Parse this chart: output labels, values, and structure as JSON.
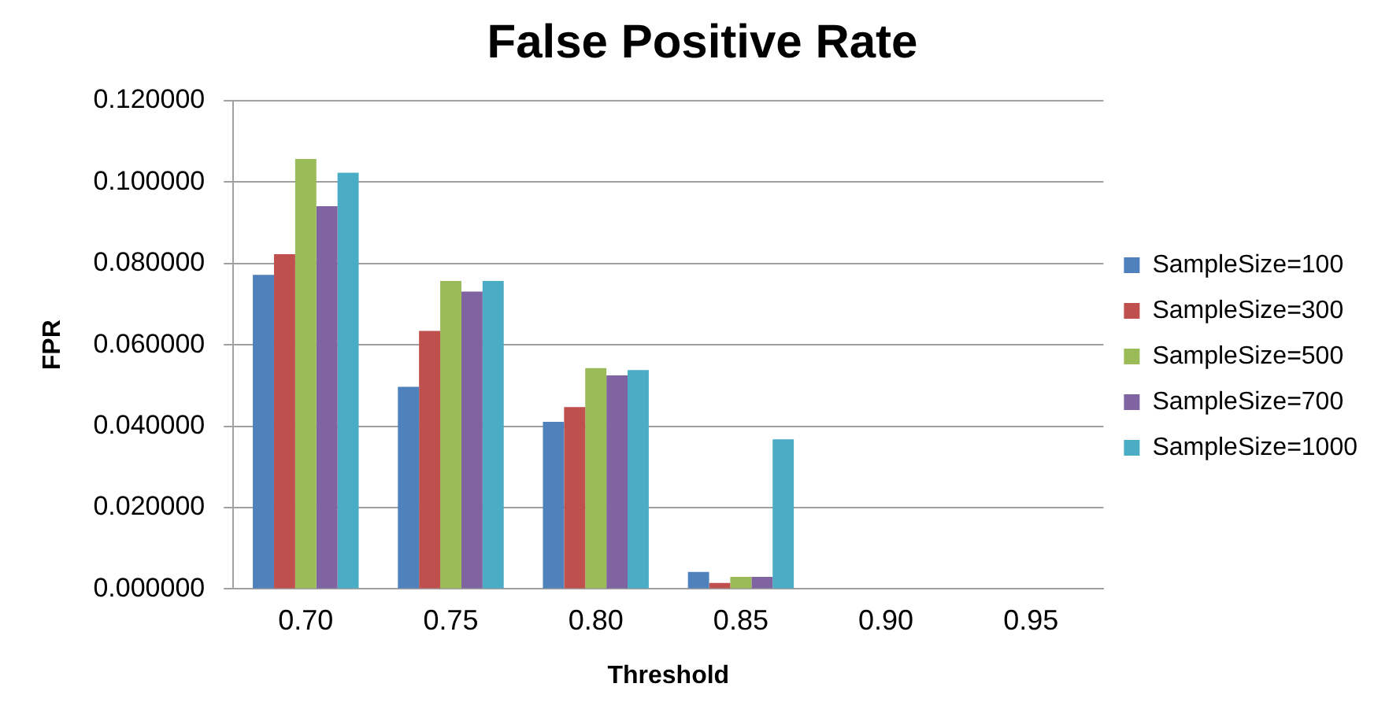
{
  "chart_data": {
    "type": "bar",
    "title": "False Positive Rate",
    "xlabel": "Threshold",
    "ylabel": "FPR",
    "categories": [
      "0.70",
      "0.75",
      "0.80",
      "0.85",
      "0.90",
      "0.95"
    ],
    "series": [
      {
        "name": "SampleSize=100",
        "color": "#4f81bd",
        "values": [
          0.0772,
          0.0497,
          0.0411,
          0.0042,
          0,
          0
        ]
      },
      {
        "name": "SampleSize=300",
        "color": "#c0504d",
        "values": [
          0.0823,
          0.0634,
          0.0447,
          0.0015,
          0,
          0
        ]
      },
      {
        "name": "SampleSize=500",
        "color": "#9bbb59",
        "values": [
          0.1057,
          0.0757,
          0.0543,
          0.003,
          0,
          0
        ]
      },
      {
        "name": "SampleSize=700",
        "color": "#8064a2",
        "values": [
          0.0941,
          0.0731,
          0.0525,
          0.003,
          0,
          0
        ]
      },
      {
        "name": "SampleSize=1000",
        "color": "#4bacc6",
        "values": [
          0.1023,
          0.0757,
          0.0538,
          0.0368,
          0,
          0
        ]
      }
    ],
    "ylim": [
      0,
      0.12
    ],
    "yticks": [
      {
        "value": 0,
        "label": "0.000000"
      },
      {
        "value": 0.02,
        "label": "0.020000"
      },
      {
        "value": 0.04,
        "label": "0.040000"
      },
      {
        "value": 0.06,
        "label": "0.060000"
      },
      {
        "value": 0.08,
        "label": "0.080000"
      },
      {
        "value": 0.1,
        "label": "0.100000"
      },
      {
        "value": 0.12,
        "label": "0.120000"
      }
    ],
    "grid": "y",
    "legend": "right"
  }
}
